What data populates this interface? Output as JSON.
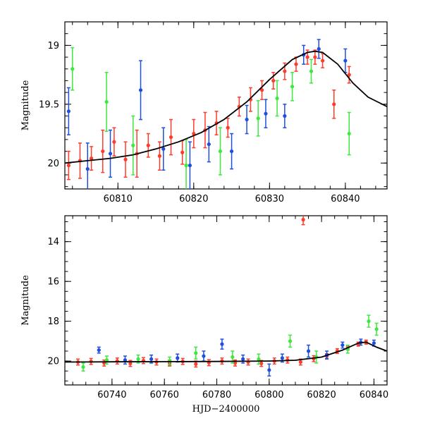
{
  "chart_data": [
    {
      "type": "scatter",
      "title": "",
      "xlabel": "",
      "ylabel": "Magnitude",
      "xlim": [
        60803,
        60845.5
      ],
      "ylim": [
        20.22,
        18.8
      ],
      "y_inverted": true,
      "x_ticks": [
        60810,
        60820,
        60830,
        60840
      ],
      "x_tick_labels": [
        "60810",
        "60820",
        "60830",
        "60840"
      ],
      "y_ticks": [
        19,
        19.5,
        20
      ],
      "y_tick_labels": [
        "19",
        "19.5",
        "20"
      ],
      "grid": false,
      "colors": {
        "red": "#ff3b2b",
        "blue": "#1f4fe0",
        "green": "#3ee83e",
        "model": "#000000"
      },
      "model_curve": {
        "x": [
          60803,
          60806,
          60809,
          60812,
          60815,
          60818,
          60821,
          60824,
          60827,
          60830,
          60833,
          60835,
          60836,
          60837,
          60839,
          60841,
          60843,
          60845.5
        ],
        "y": [
          20.0,
          19.98,
          19.96,
          19.93,
          19.88,
          19.82,
          19.74,
          19.63,
          19.48,
          19.29,
          19.12,
          19.06,
          19.05,
          19.06,
          19.16,
          19.32,
          19.44,
          19.52
        ]
      },
      "series": [
        {
          "color": "red",
          "x": [
            60803.5,
            60805,
            60806.5,
            60808,
            60809.5,
            60811,
            60812.5,
            60814,
            60815.5,
            60817,
            60818.5,
            60820,
            60821.5,
            60823,
            60824.5,
            60826,
            60827.5,
            60829,
            60830.5,
            60832,
            60833.5,
            60835,
            60836,
            60837,
            60838.5,
            60840.5
          ],
          "y": [
            20.02,
            19.98,
            19.96,
            19.9,
            19.82,
            19.97,
            19.92,
            19.85,
            19.94,
            19.78,
            19.91,
            19.75,
            19.72,
            19.66,
            19.7,
            19.52,
            19.46,
            19.38,
            19.3,
            19.22,
            19.16,
            19.1,
            19.1,
            19.13,
            19.5,
            19.25
          ],
          "err": [
            0.12,
            0.15,
            0.1,
            0.18,
            0.12,
            0.15,
            0.2,
            0.1,
            0.12,
            0.15,
            0.1,
            0.12,
            0.15,
            0.1,
            0.08,
            0.08,
            0.1,
            0.08,
            0.07,
            0.07,
            0.06,
            0.06,
            0.06,
            0.06,
            0.12,
            0.07
          ]
        },
        {
          "color": "blue",
          "x": [
            60803.5,
            60806,
            60809,
            60813,
            60816,
            60819.5,
            60822,
            60825,
            60827,
            60829.5,
            60832,
            60834.5,
            60836.5,
            60840
          ],
          "y": [
            19.56,
            20.05,
            19.92,
            19.38,
            19.88,
            20.02,
            19.84,
            19.9,
            19.63,
            19.58,
            19.6,
            19.08,
            19.03,
            19.13
          ],
          "err": [
            0.2,
            0.22,
            0.2,
            0.25,
            0.18,
            0.2,
            0.15,
            0.15,
            0.12,
            0.12,
            0.1,
            0.08,
            0.08,
            0.1
          ]
        },
        {
          "color": "green",
          "x": [
            60804,
            60808.5,
            60812,
            60819,
            60823.5,
            60828.5,
            60831,
            60833,
            60835.5,
            60840.5
          ],
          "y": [
            19.2,
            19.48,
            19.85,
            20.02,
            19.9,
            19.62,
            19.45,
            19.35,
            19.22,
            19.75
          ],
          "err": [
            0.18,
            0.25,
            0.25,
            0.22,
            0.2,
            0.15,
            0.15,
            0.12,
            0.1,
            0.18
          ]
        }
      ]
    },
    {
      "type": "scatter",
      "title": "",
      "xlabel": "HJD−2400000",
      "ylabel": "Magnitude",
      "xlim": [
        60722,
        60845
      ],
      "ylim": [
        21.2,
        12.7
      ],
      "y_inverted": true,
      "x_ticks": [
        60740,
        60760,
        60780,
        60800,
        60820,
        60840
      ],
      "x_tick_labels": [
        "60740",
        "60760",
        "60780",
        "60800",
        "60820",
        "60840"
      ],
      "y_ticks": [
        14,
        16,
        18,
        20
      ],
      "y_tick_labels": [
        "14",
        "16",
        "18",
        "20"
      ],
      "grid": false,
      "colors": {
        "red": "#ff3b2b",
        "blue": "#1f4fe0",
        "green": "#3ee83e",
        "model": "#000000"
      },
      "model_curve": {
        "x": [
          60722,
          60740,
          60760,
          60780,
          60800,
          60810,
          60820,
          60828,
          60834,
          60837,
          60841,
          60845
        ],
        "y": [
          20.05,
          20.04,
          20.03,
          20.02,
          20.0,
          19.96,
          19.8,
          19.45,
          19.1,
          19.05,
          19.3,
          19.5
        ]
      },
      "series": [
        {
          "color": "red",
          "x": [
            60727,
            60732,
            60737,
            60742,
            60747,
            60752,
            60757,
            60762,
            60767,
            60772,
            60777,
            60782,
            60787,
            60792,
            60797,
            60802,
            60807,
            60812,
            60813,
            60817,
            60822,
            60826,
            60830,
            60834,
            60837
          ],
          "y": [
            20.05,
            20.02,
            20.1,
            20.0,
            20.12,
            19.98,
            20.05,
            20.1,
            20.02,
            20.15,
            20.08,
            20.0,
            20.1,
            20.05,
            20.12,
            20.0,
            19.95,
            20.05,
            12.9,
            19.88,
            19.75,
            19.5,
            19.35,
            19.15,
            19.05
          ],
          "err": [
            0.15,
            0.15,
            0.15,
            0.15,
            0.15,
            0.15,
            0.15,
            0.15,
            0.15,
            0.15,
            0.15,
            0.15,
            0.15,
            0.15,
            0.15,
            0.15,
            0.15,
            0.15,
            0.25,
            0.15,
            0.12,
            0.12,
            0.1,
            0.1,
            0.1
          ]
        },
        {
          "color": "blue",
          "x": [
            60735,
            60745,
            60755,
            60765,
            60775,
            60782,
            60790,
            60800,
            60805,
            60815,
            60822,
            60828,
            60835,
            60840
          ],
          "y": [
            19.45,
            19.95,
            19.9,
            19.85,
            19.75,
            19.15,
            19.9,
            20.45,
            19.85,
            19.5,
            19.7,
            19.2,
            19.05,
            19.1
          ],
          "err": [
            0.15,
            0.2,
            0.2,
            0.2,
            0.25,
            0.25,
            0.2,
            0.3,
            0.2,
            0.3,
            0.2,
            0.15,
            0.15,
            0.15
          ]
        },
        {
          "color": "green",
          "x": [
            60729,
            60738,
            60750,
            60762,
            60772,
            60786,
            60796,
            60808,
            60818,
            60830,
            60838,
            60841
          ],
          "y": [
            20.3,
            19.95,
            19.9,
            20.0,
            19.6,
            19.8,
            19.9,
            19.0,
            19.8,
            19.4,
            18.0,
            18.4
          ],
          "err": [
            0.2,
            0.2,
            0.2,
            0.2,
            0.3,
            0.3,
            0.25,
            0.3,
            0.3,
            0.2,
            0.3,
            0.3
          ]
        }
      ]
    }
  ]
}
